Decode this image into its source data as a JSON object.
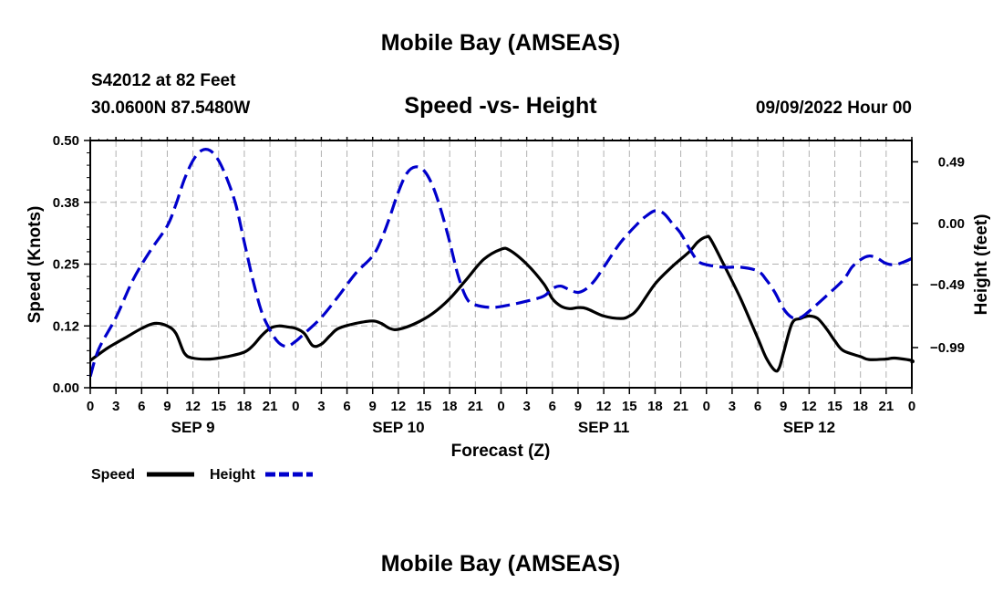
{
  "page": {
    "title_top": "Mobile Bay (AMSEAS)",
    "title_bottom": "Mobile Bay (AMSEAS)"
  },
  "station": {
    "line1": "S42012 at 82 Feet",
    "line2": "30.0600N  87.5480W"
  },
  "chart_title": "Speed -vs- Height",
  "timestamp": "09/09/2022 Hour 00",
  "colors": {
    "speed": "#000000",
    "height": "#0000cc",
    "grid": "#b0b0b0"
  },
  "chart_data": {
    "type": "line",
    "title": "Speed -vs- Height",
    "xlabel": "Forecast (Z)",
    "ylabel_left": "Speed (Knots)",
    "ylabel_right": "Height (feet)",
    "x_range_hours": [
      0,
      96
    ],
    "x_tick_step_hours": 3,
    "x_tick_labels": [
      "0",
      "3",
      "6",
      "9",
      "12",
      "15",
      "18",
      "21",
      "0",
      "3",
      "6",
      "9",
      "12",
      "15",
      "18",
      "21",
      "0",
      "3",
      "6",
      "9",
      "12",
      "15",
      "18",
      "21",
      "0",
      "3",
      "6",
      "9",
      "12",
      "15",
      "18",
      "21",
      "0"
    ],
    "day_labels": [
      {
        "label": "SEP 9",
        "hour": 12
      },
      {
        "label": "SEP 10",
        "hour": 36
      },
      {
        "label": "SEP 11",
        "hour": 60
      },
      {
        "label": "SEP 12",
        "hour": 84
      }
    ],
    "y_left": {
      "range": [
        0,
        0.5
      ],
      "ticks": [
        0,
        0.125,
        0.25,
        0.375,
        0.5
      ],
      "tick_labels": [
        "0.00",
        "0.12",
        "0.25",
        "0.38",
        "0.50"
      ]
    },
    "y_right": {
      "range": [
        -1.31,
        0.66
      ],
      "ticks": [
        -0.99,
        -0.49,
        0.0,
        0.49
      ],
      "tick_labels": [
        "−0.99",
        "−0.49",
        "0.00",
        "0.49"
      ]
    },
    "grid": true,
    "series": [
      {
        "name": "Speed",
        "axis": "left",
        "style": "solid",
        "points": [
          [
            0,
            0.055
          ],
          [
            2,
            0.08
          ],
          [
            4,
            0.1
          ],
          [
            6,
            0.12
          ],
          [
            7.5,
            0.13
          ],
          [
            9,
            0.125
          ],
          [
            10,
            0.11
          ],
          [
            11,
            0.07
          ],
          [
            12,
            0.06
          ],
          [
            14,
            0.058
          ],
          [
            16,
            0.063
          ],
          [
            18,
            0.072
          ],
          [
            19,
            0.085
          ],
          [
            20,
            0.105
          ],
          [
            21,
            0.12
          ],
          [
            22,
            0.125
          ],
          [
            23,
            0.123
          ],
          [
            24,
            0.12
          ],
          [
            25,
            0.11
          ],
          [
            26,
            0.085
          ],
          [
            27,
            0.088
          ],
          [
            28,
            0.105
          ],
          [
            29,
            0.12
          ],
          [
            31,
            0.13
          ],
          [
            33,
            0.135
          ],
          [
            34,
            0.13
          ],
          [
            35,
            0.12
          ],
          [
            36,
            0.118
          ],
          [
            38,
            0.13
          ],
          [
            40,
            0.15
          ],
          [
            42,
            0.18
          ],
          [
            44,
            0.22
          ],
          [
            46,
            0.26
          ],
          [
            48,
            0.28
          ],
          [
            49,
            0.278
          ],
          [
            51,
            0.25
          ],
          [
            53,
            0.21
          ],
          [
            54,
            0.18
          ],
          [
            55,
            0.165
          ],
          [
            56,
            0.16
          ],
          [
            57,
            0.162
          ],
          [
            58,
            0.16
          ],
          [
            60,
            0.145
          ],
          [
            62,
            0.14
          ],
          [
            63,
            0.145
          ],
          [
            64,
            0.16
          ],
          [
            66,
            0.21
          ],
          [
            68,
            0.245
          ],
          [
            70,
            0.275
          ],
          [
            71,
            0.295
          ],
          [
            72,
            0.305
          ],
          [
            72.5,
            0.3
          ],
          [
            74,
            0.25
          ],
          [
            76,
            0.18
          ],
          [
            78,
            0.1
          ],
          [
            79,
            0.06
          ],
          [
            80,
            0.035
          ],
          [
            80.5,
            0.04
          ],
          [
            81,
            0.07
          ],
          [
            82,
            0.13
          ],
          [
            83,
            0.14
          ],
          [
            84,
            0.145
          ],
          [
            85,
            0.14
          ],
          [
            86,
            0.12
          ],
          [
            87,
            0.095
          ],
          [
            88,
            0.075
          ],
          [
            90,
            0.063
          ],
          [
            91,
            0.057
          ],
          [
            93,
            0.058
          ],
          [
            94,
            0.06
          ],
          [
            96,
            0.055
          ],
          [
            96.2,
            0.05
          ]
        ]
      },
      {
        "name": "Height",
        "axis": "right",
        "style": "dashed",
        "points": [
          [
            0,
            -1.22
          ],
          [
            1,
            -1.0
          ],
          [
            3,
            -0.75
          ],
          [
            5,
            -0.45
          ],
          [
            7,
            -0.22
          ],
          [
            9,
            -0.02
          ],
          [
            10,
            0.15
          ],
          [
            11,
            0.35
          ],
          [
            12,
            0.5
          ],
          [
            13,
            0.58
          ],
          [
            14,
            0.58
          ],
          [
            15,
            0.5
          ],
          [
            16,
            0.35
          ],
          [
            17,
            0.15
          ],
          [
            18,
            -0.15
          ],
          [
            19,
            -0.45
          ],
          [
            20,
            -0.7
          ],
          [
            21,
            -0.85
          ],
          [
            22,
            -0.95
          ],
          [
            23,
            -0.98
          ],
          [
            24,
            -0.94
          ],
          [
            25,
            -0.88
          ],
          [
            27,
            -0.75
          ],
          [
            29,
            -0.58
          ],
          [
            31,
            -0.4
          ],
          [
            33,
            -0.26
          ],
          [
            34,
            -0.13
          ],
          [
            35,
            0.05
          ],
          [
            36,
            0.25
          ],
          [
            37,
            0.4
          ],
          [
            38,
            0.45
          ],
          [
            39,
            0.42
          ],
          [
            40,
            0.3
          ],
          [
            41,
            0.1
          ],
          [
            42,
            -0.15
          ],
          [
            43,
            -0.42
          ],
          [
            44,
            -0.6
          ],
          [
            45,
            -0.65
          ],
          [
            47,
            -0.67
          ],
          [
            49,
            -0.65
          ],
          [
            51,
            -0.62
          ],
          [
            53,
            -0.58
          ],
          [
            54,
            -0.52
          ],
          [
            55,
            -0.5
          ],
          [
            56,
            -0.53
          ],
          [
            57,
            -0.55
          ],
          [
            58,
            -0.52
          ],
          [
            59,
            -0.45
          ],
          [
            60,
            -0.35
          ],
          [
            62,
            -0.15
          ],
          [
            64,
            0.0
          ],
          [
            65,
            0.06
          ],
          [
            66,
            0.1
          ],
          [
            67,
            0.08
          ],
          [
            68,
            0.0
          ],
          [
            69,
            -0.08
          ],
          [
            70,
            -0.2
          ],
          [
            71,
            -0.3
          ],
          [
            72,
            -0.33
          ],
          [
            74,
            -0.35
          ],
          [
            76,
            -0.35
          ],
          [
            78,
            -0.38
          ],
          [
            79,
            -0.45
          ],
          [
            80,
            -0.55
          ],
          [
            81,
            -0.68
          ],
          [
            82,
            -0.75
          ],
          [
            83,
            -0.75
          ],
          [
            84,
            -0.7
          ],
          [
            86,
            -0.58
          ],
          [
            88,
            -0.45
          ],
          [
            89,
            -0.35
          ],
          [
            90,
            -0.29
          ],
          [
            91,
            -0.26
          ],
          [
            92,
            -0.28
          ],
          [
            93,
            -0.32
          ],
          [
            94,
            -0.33
          ],
          [
            95,
            -0.31
          ],
          [
            96,
            -0.28
          ]
        ]
      }
    ],
    "legend": [
      {
        "label": "Speed",
        "color": "#000000",
        "style": "solid"
      },
      {
        "label": "Height",
        "color": "#0000cc",
        "style": "dashed"
      }
    ]
  }
}
